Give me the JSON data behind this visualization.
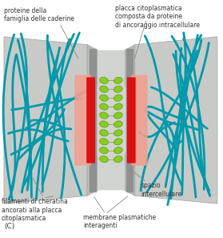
{
  "labels": {
    "top_left": "proteine della\nfamiglia delle caderine",
    "top_right": "placca citoplasmatica\ncomposta da proteine\ndi ancoraggio intracellulare",
    "bottom_left": "filamenti di cheratina\nancorati alla placca\ncitoplasmatica",
    "bottom_mid": "membrane plasmatiche\ninteragenti",
    "bottom_right": "spazio\nintercellulare",
    "label_c": "(C)"
  },
  "colors": {
    "bg": "#ffffff",
    "cell_gray": "#c8cac8",
    "cell_gray_dark": "#a0a5a0",
    "cell_gray_mid": "#b8bcb8",
    "membrane_gray": "#909090",
    "membrane_dark": "#707070",
    "plaque_salmon": "#f0a090",
    "red_bar": "#dd1111",
    "cadherin_green": "#88cc22",
    "cadherin_outline": "#669911",
    "filament_teal": "#0099aa",
    "filament_dark": "#007788",
    "ann_line": "#888888",
    "ann_text": "#333333"
  },
  "fs": 5.5
}
